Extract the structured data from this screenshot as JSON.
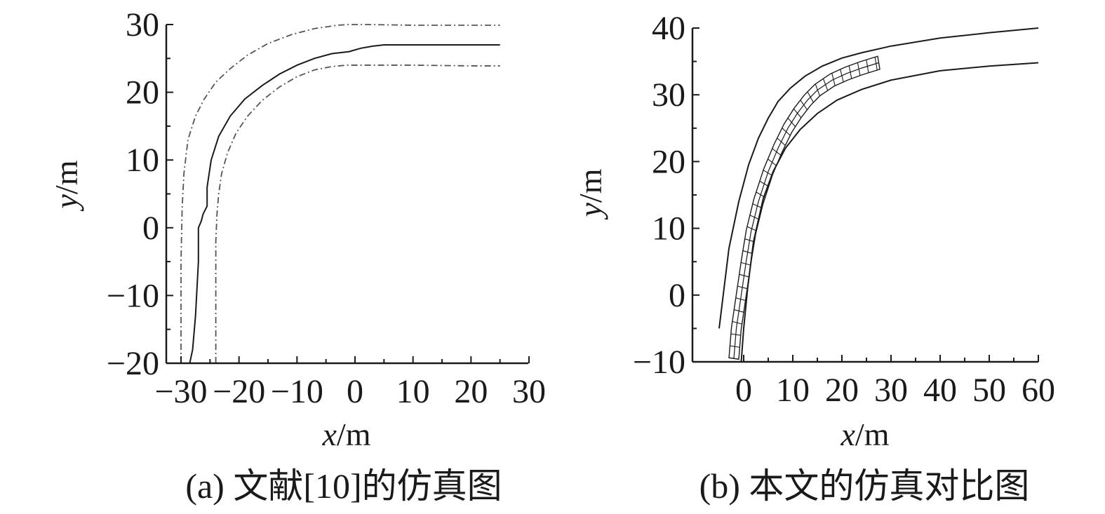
{
  "chart_data": [
    {
      "type": "line",
      "caption": "(a) 文献[10]的仿真图",
      "xlabel": "x/m",
      "ylabel": "y/m",
      "xlim": [
        -30,
        30
      ],
      "ylim": [
        -20,
        30
      ],
      "x_ticks": [
        -30,
        -20,
        -10,
        0,
        10,
        20,
        30
      ],
      "y_ticks": [
        -20,
        -10,
        0,
        10,
        20,
        30
      ],
      "x_tick_labels": [
        "−30",
        "−20",
        "−10",
        "0",
        "10",
        "20",
        "30"
      ],
      "y_tick_labels": [
        "−20",
        "−10",
        "0",
        "10",
        "20",
        "30"
      ],
      "grid": false,
      "series": [
        {
          "style": "dash-dot",
          "x": [
            -30,
            -30,
            -29.8,
            -29.5,
            -28.8,
            -27.5,
            -26,
            -24,
            -21.5,
            -18.5,
            -15,
            -11,
            -7,
            -3,
            -1,
            2,
            10,
            20,
            25
          ],
          "y": [
            -20,
            -5,
            3,
            8,
            13,
            16.5,
            19,
            21.5,
            23.5,
            25.5,
            27.2,
            28.5,
            29.4,
            29.9,
            30,
            30,
            29.9,
            29.9,
            29.9
          ]
        },
        {
          "style": "solid",
          "x": [
            -28.5,
            -28,
            -27.5,
            -27,
            -27,
            -26.5,
            -26.2,
            -25.5,
            -25.5,
            -24.8,
            -23.5,
            -21.5,
            -19,
            -16,
            -13,
            -10,
            -7,
            -4,
            -1,
            1,
            3,
            5,
            10,
            20,
            25
          ],
          "y": [
            -20,
            -18,
            -13,
            -5,
            0,
            1,
            2,
            3.2,
            6,
            10,
            13.5,
            16.5,
            19,
            21,
            22.7,
            24,
            25,
            25.7,
            26,
            26.5,
            26.8,
            27,
            27,
            27,
            27
          ]
        },
        {
          "style": "dash-dot",
          "x": [
            -24,
            -24,
            -23.8,
            -23.5,
            -23,
            -22,
            -20.5,
            -18.5,
            -16,
            -13,
            -10,
            -7,
            -4,
            -1.5,
            0,
            10,
            20,
            25
          ],
          "y": [
            -20,
            -2,
            2,
            5,
            8,
            11,
            14,
            16.5,
            18.8,
            20.8,
            22.3,
            23.3,
            23.8,
            24,
            24,
            24,
            23.9,
            23.9
          ]
        }
      ]
    },
    {
      "type": "line",
      "caption": "(b) 本文的仿真对比图",
      "xlabel": "x/m",
      "ylabel": "y/m",
      "xlim": [
        -5,
        60
      ],
      "ylim": [
        -10,
        40
      ],
      "x_ticks": [
        0,
        10,
        20,
        30,
        40,
        50,
        60
      ],
      "y_ticks": [
        -10,
        0,
        10,
        20,
        30,
        40
      ],
      "x_tick_labels": [
        "0",
        "10",
        "20",
        "30",
        "40",
        "50",
        "60"
      ],
      "y_tick_labels": [
        "−10",
        "0",
        "10",
        "20",
        "30",
        "40"
      ],
      "grid": false,
      "series": [
        {
          "style": "solid",
          "x": [
            -5,
            -4,
            -3,
            -1,
            1,
            3,
            5,
            7,
            9.5,
            12.5,
            16,
            20,
            24,
            30,
            40,
            50,
            60
          ],
          "y": [
            -5,
            1,
            7,
            14,
            19.5,
            23.5,
            26.5,
            29,
            31,
            32.8,
            34.3,
            35.5,
            36.3,
            37.3,
            38.5,
            39.3,
            40
          ]
        },
        {
          "style": "solid",
          "x": [
            -0.5,
            0,
            0.8,
            2,
            4,
            6,
            8.5,
            11.5,
            15,
            19,
            24,
            30,
            40,
            50,
            60
          ],
          "y": [
            -10,
            -5,
            1,
            8,
            14.5,
            18.5,
            22,
            24.8,
            27.2,
            29.2,
            30.8,
            32.2,
            33.6,
            34.3,
            34.8
          ]
        },
        {
          "style": "vehicle-swept-band",
          "x": [
            -2,
            -1.5,
            -0.5,
            0.5,
            1.5,
            3,
            5,
            7,
            9,
            11,
            13,
            15,
            18,
            21,
            24,
            27.5
          ],
          "y": [
            -9.5,
            -5,
            0,
            5,
            9.5,
            14,
            18.5,
            22,
            25,
            27.3,
            29.2,
            30.7,
            32.2,
            33.2,
            34,
            34.8
          ]
        }
      ]
    }
  ]
}
